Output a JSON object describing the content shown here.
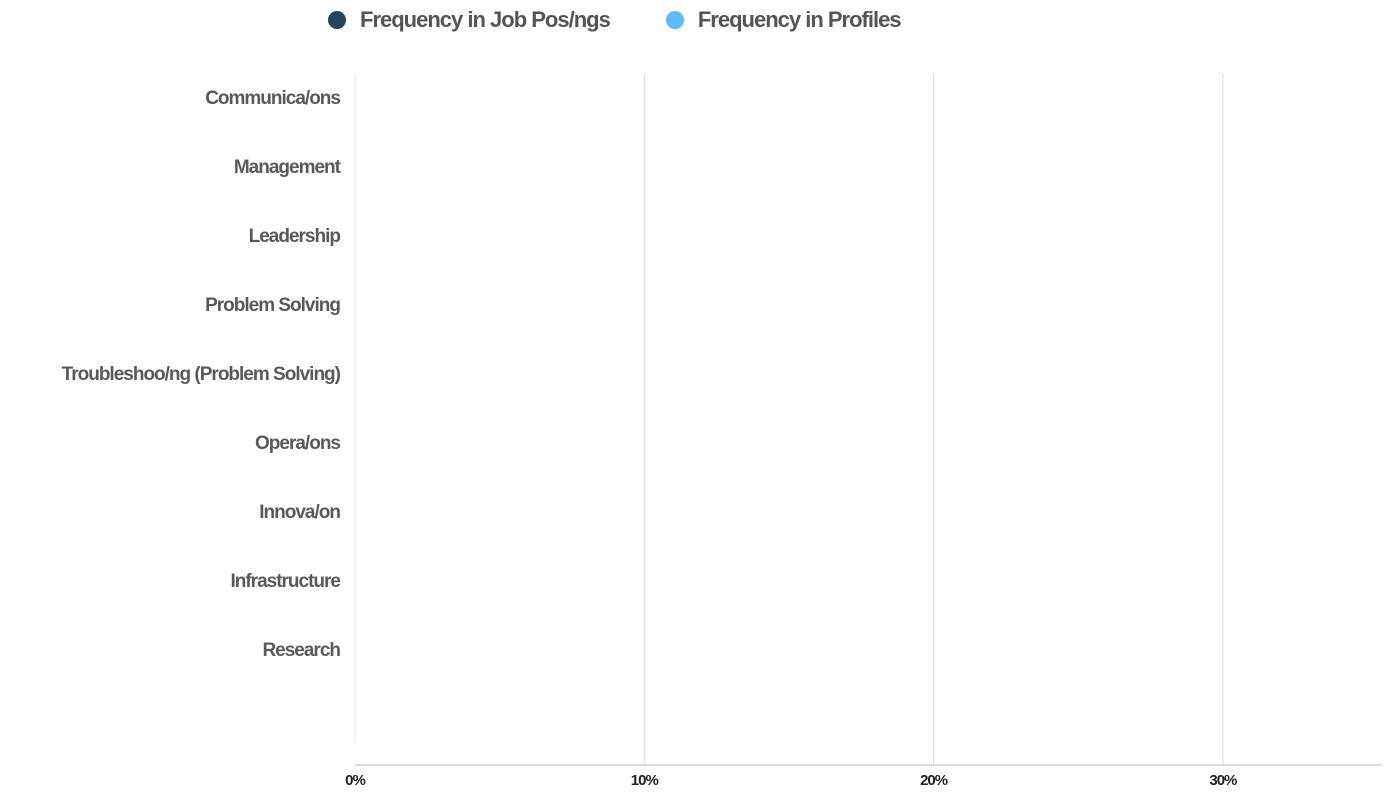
{
  "chart_data": {
    "type": "bar",
    "orientation": "horizontal",
    "categories": [
      "Communica/ons",
      "Management",
      "Leadership",
      "Problem Solving",
      "Troubleshoo/ng (Problem Solving)",
      "Opera/ons",
      "Innova/on",
      "Infrastructure",
      "Research"
    ],
    "series": [
      {
        "name": "Frequency in Job Pos/ngs",
        "color": "#24455c",
        "values": [
          0,
          0,
          0,
          0,
          0,
          0,
          0,
          0,
          0
        ]
      },
      {
        "name": "Frequency in Profiles",
        "color": "#5bbcf6",
        "values": [
          0,
          0,
          0,
          0,
          0,
          0,
          0,
          0,
          0
        ]
      }
    ],
    "xlim": [
      0,
      0.355
    ],
    "xticks": [
      {
        "value": 0,
        "label": "0%"
      },
      {
        "value": 0.1,
        "label": "10%"
      },
      {
        "value": 0.2,
        "label": "20%"
      },
      {
        "value": 0.3,
        "label": "30%"
      }
    ],
    "grid": true,
    "legend": "top"
  }
}
